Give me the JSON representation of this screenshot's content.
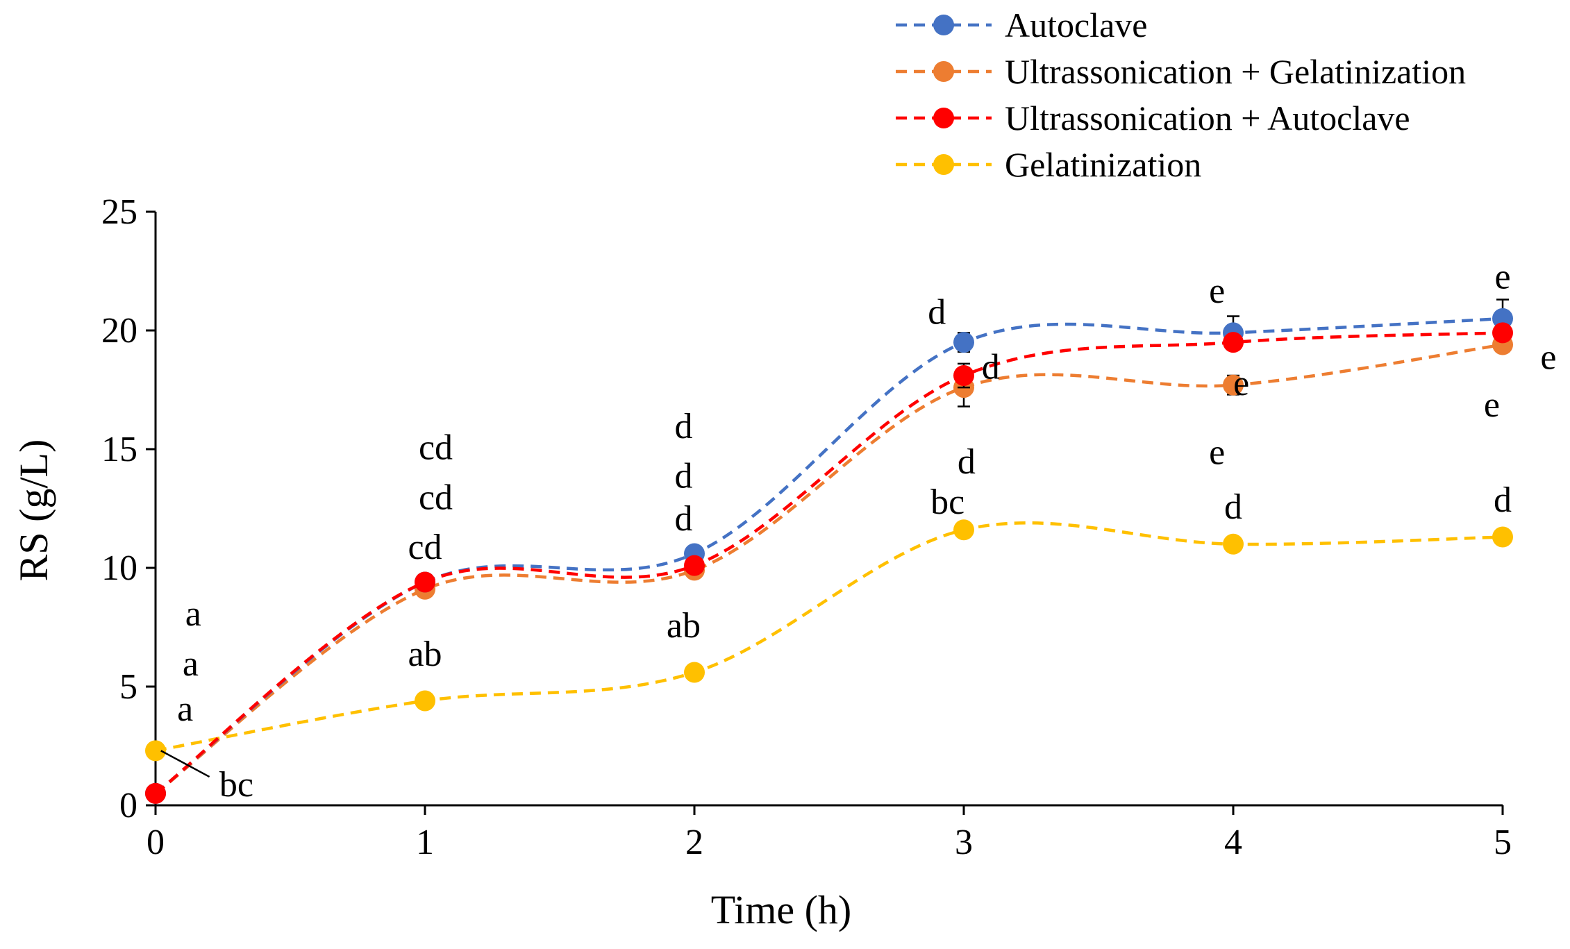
{
  "chart_data": {
    "type": "line",
    "title": "",
    "xlabel": "Time (h)",
    "ylabel": "RS (g/L)",
    "x": [
      0,
      1,
      2,
      3,
      4,
      5
    ],
    "xlim": [
      0,
      5
    ],
    "ylim": [
      0,
      25
    ],
    "xticks": [
      "0",
      "1",
      "2",
      "3",
      "4",
      "5"
    ],
    "yticks": [
      "0",
      "5",
      "10",
      "15",
      "20",
      "25"
    ],
    "grid": false,
    "legend_position": "top-right",
    "series": [
      {
        "name": "Autoclave",
        "color": "#4472C4",
        "values": [
          0.5,
          9.4,
          10.6,
          19.5,
          19.9,
          20.5
        ],
        "errors": [
          0.1,
          0.2,
          0.2,
          0.4,
          0.7,
          0.8
        ]
      },
      {
        "name": "Ultrassonication + Gelatinization",
        "color": "#ED7D31",
        "values": [
          0.5,
          9.1,
          9.9,
          17.6,
          17.7,
          19.4
        ],
        "errors": [
          0.1,
          0.2,
          0.2,
          0.8,
          0.4,
          0.3
        ]
      },
      {
        "name": "Ultrassonication + Autoclave",
        "color": "#FF0000",
        "values": [
          0.5,
          9.4,
          10.1,
          18.1,
          19.5,
          19.9
        ],
        "errors": [
          0.1,
          0.2,
          0.2,
          0.5,
          0.3,
          0.3
        ]
      },
      {
        "name": "Gelatinization",
        "color": "#FFC000",
        "values": [
          2.3,
          4.4,
          5.6,
          11.6,
          11.0,
          11.3
        ],
        "errors": [
          0.1,
          0.2,
          0.2,
          0.2,
          0.2,
          0.2
        ]
      }
    ],
    "annotations": [
      {
        "text": "a",
        "x": 0.14,
        "y": 8.1
      },
      {
        "text": "a",
        "x": 0.13,
        "y": 6.0
      },
      {
        "text": "a",
        "x": 0.11,
        "y": 4.1
      },
      {
        "text": "bc",
        "x": 0.3,
        "y": 0.9
      },
      {
        "text": "cd",
        "x": 1.04,
        "y": 15.1
      },
      {
        "text": "cd",
        "x": 1.04,
        "y": 13.0
      },
      {
        "text": "cd",
        "x": 1.0,
        "y": 10.9
      },
      {
        "text": "ab",
        "x": 1.0,
        "y": 6.4
      },
      {
        "text": "d",
        "x": 1.96,
        "y": 16.0
      },
      {
        "text": "d",
        "x": 1.96,
        "y": 13.9
      },
      {
        "text": "d",
        "x": 1.96,
        "y": 12.1
      },
      {
        "text": "ab",
        "x": 1.96,
        "y": 7.6
      },
      {
        "text": "d",
        "x": 2.9,
        "y": 20.8
      },
      {
        "text": "d",
        "x": 3.1,
        "y": 18.5
      },
      {
        "text": "d",
        "x": 3.01,
        "y": 14.5
      },
      {
        "text": "bc",
        "x": 2.94,
        "y": 12.8
      },
      {
        "text": "e",
        "x": 3.94,
        "y": 21.7
      },
      {
        "text": "e",
        "x": 4.03,
        "y": 17.8
      },
      {
        "text": "e",
        "x": 3.94,
        "y": 14.9
      },
      {
        "text": "d",
        "x": 4.0,
        "y": 12.6
      },
      {
        "text": "e",
        "x": 5.0,
        "y": 22.3
      },
      {
        "text": "e",
        "x": 5.17,
        "y": 18.9
      },
      {
        "text": "e",
        "x": 4.96,
        "y": 16.9
      },
      {
        "text": "d",
        "x": 5.0,
        "y": 12.9
      }
    ]
  }
}
